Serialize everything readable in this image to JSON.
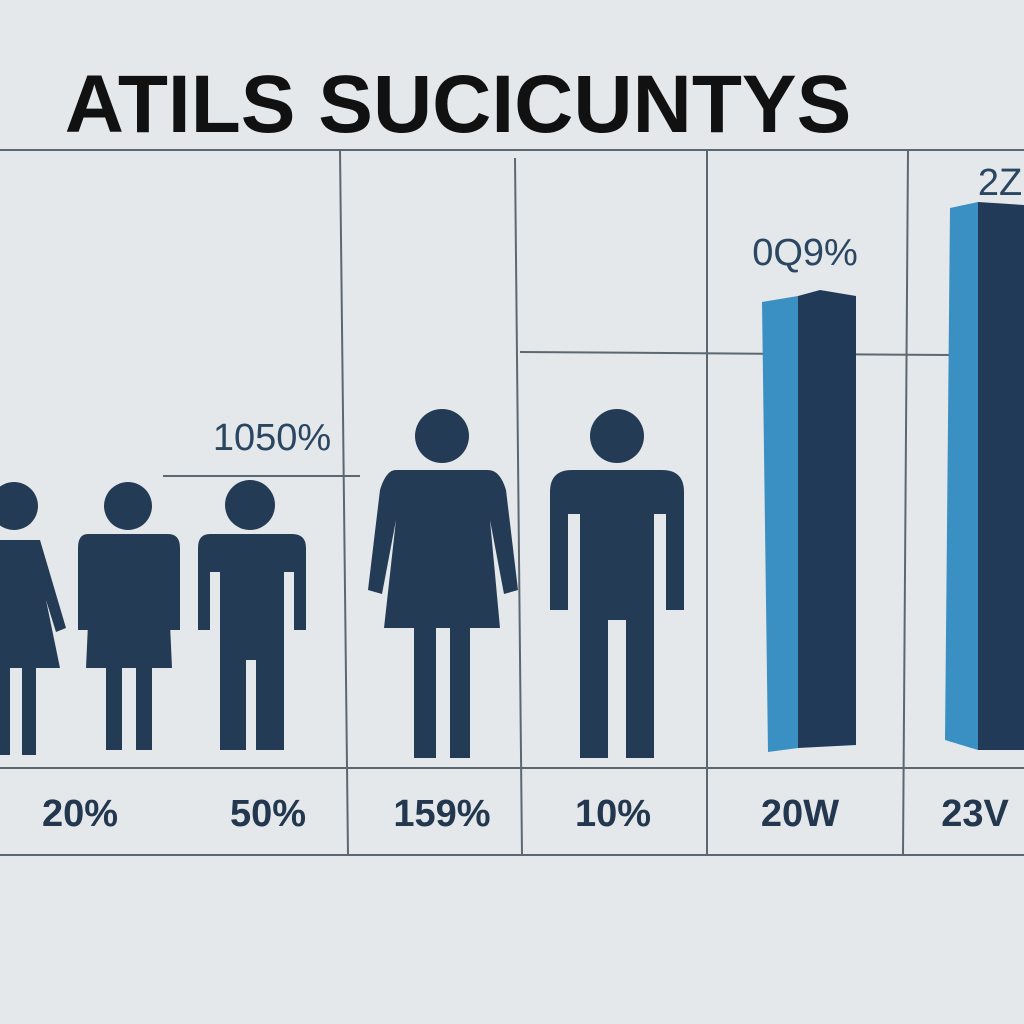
{
  "header": {
    "title": "ATILS SUCICUNTYS"
  },
  "annotations": [
    "1050%",
    "0Q9%",
    "2Z"
  ],
  "labels": [
    "20%",
    "50%",
    "159%",
    "10%",
    "20W",
    "23V"
  ]
}
